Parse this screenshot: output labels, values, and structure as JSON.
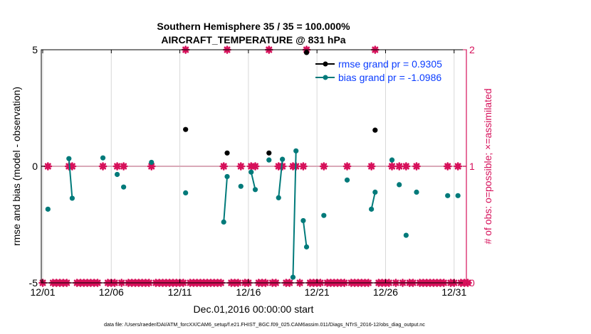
{
  "chart_data": {
    "type": "scatter",
    "title": [
      "Southern Hemisphere 35 / 35 = 100.000%",
      "AIRCRAFT_TEMPERATURE @ 831 hPa"
    ],
    "xlabel": "Dec.01,2016 00:00:00 start",
    "ylabel": "rmse and bias (model - observation)",
    "y2label": "# of obs: o=possible; ×=assimilated",
    "x_units": "days since 2016-12-01 00:00",
    "xlim": [
      0,
      31
    ],
    "ylim": [
      -5,
      5
    ],
    "y2lim": [
      0,
      2
    ],
    "xticks": [
      {
        "x": 0,
        "label": "12/01"
      },
      {
        "x": 5,
        "label": "12/06"
      },
      {
        "x": 10,
        "label": "12/11"
      },
      {
        "x": 15,
        "label": "12/16"
      },
      {
        "x": 20,
        "label": "12/21"
      },
      {
        "x": 25,
        "label": "12/26"
      },
      {
        "x": 30,
        "label": "12/31"
      }
    ],
    "yticks": [
      {
        "y": -5,
        "label": "-5"
      },
      {
        "y": 0,
        "label": "0"
      },
      {
        "y": 5,
        "label": "5"
      }
    ],
    "y2ticks": [
      {
        "y": 0,
        "label": "0"
      },
      {
        "y": 1,
        "label": "1"
      },
      {
        "y": 2,
        "label": "2"
      }
    ],
    "grid": "vertical",
    "legend": {
      "placement": "top-right",
      "entries": [
        "rmse grand pr = 0.9305",
        "bias grand pr = -1.0986"
      ]
    },
    "series": [
      {
        "name": "rmse",
        "color": "#000000",
        "runs": [
          [
            [
              10.42,
              1.58
            ]
          ],
          [
            [
              13.45,
              0.57
            ]
          ],
          [
            [
              16.5,
              0.57
            ]
          ],
          [
            [
              19.24,
              4.88
            ]
          ],
          [
            [
              24.24,
              1.55
            ]
          ]
        ]
      },
      {
        "name": "bias",
        "color": "#007a7a",
        "runs": [
          [
            [
              0.38,
              -1.84
            ]
          ],
          [
            [
              1.91,
              0.33
            ],
            [
              2.15,
              -1.37
            ]
          ],
          [
            [
              4.39,
              0.36
            ]
          ],
          [
            [
              5.43,
              -0.35
            ]
          ],
          [
            [
              5.9,
              -0.89
            ]
          ],
          [
            [
              7.93,
              0.17
            ]
          ],
          [
            [
              10.42,
              -1.14
            ]
          ],
          [
            [
              13.2,
              -2.39
            ],
            [
              13.45,
              -0.44
            ]
          ],
          [
            [
              14.45,
              -0.86
            ]
          ],
          [
            [
              15.2,
              -0.25
            ],
            [
              15.5,
              -1.0
            ]
          ],
          [
            [
              16.5,
              0.27
            ]
          ],
          [
            [
              17.2,
              -1.35
            ],
            [
              17.48,
              0.3
            ]
          ],
          [
            [
              18.25,
              -4.76
            ],
            [
              18.47,
              0.66
            ]
          ],
          [
            [
              19.0,
              -2.33
            ],
            [
              19.24,
              -3.46
            ]
          ],
          [
            [
              20.5,
              -2.11
            ]
          ],
          [
            [
              22.2,
              -0.59
            ]
          ],
          [
            [
              23.97,
              -1.84
            ],
            [
              24.24,
              -1.11
            ]
          ],
          [
            [
              25.47,
              0.27
            ]
          ],
          [
            [
              26.0,
              -0.79
            ]
          ],
          [
            [
              26.5,
              -2.96
            ]
          ],
          [
            [
              27.26,
              -1.11
            ]
          ],
          [
            [
              29.53,
              -1.26
            ]
          ],
          [
            [
              30.28,
              -1.26
            ]
          ]
        ]
      },
      {
        "name": "obs count",
        "color": "#d6105a",
        "axis": "right",
        "default_count": 0,
        "step_days": 0.25,
        "nonzero": [
          [
            0.38,
            1
          ],
          [
            1.91,
            1
          ],
          [
            2.15,
            1
          ],
          [
            4.39,
            1
          ],
          [
            5.43,
            1
          ],
          [
            5.9,
            1
          ],
          [
            7.93,
            1
          ],
          [
            10.42,
            2
          ],
          [
            13.2,
            1
          ],
          [
            13.45,
            2
          ],
          [
            14.45,
            1
          ],
          [
            15.2,
            1
          ],
          [
            15.5,
            1
          ],
          [
            16.5,
            2
          ],
          [
            17.2,
            1
          ],
          [
            17.48,
            1
          ],
          [
            18.25,
            1
          ],
          [
            18.47,
            1
          ],
          [
            19.0,
            1
          ],
          [
            19.24,
            2
          ],
          [
            20.5,
            1
          ],
          [
            22.2,
            1
          ],
          [
            23.97,
            1
          ],
          [
            24.24,
            2
          ],
          [
            25.47,
            1
          ],
          [
            26.0,
            1
          ],
          [
            26.5,
            1
          ],
          [
            27.26,
            1
          ],
          [
            29.53,
            1
          ],
          [
            30.28,
            1
          ]
        ]
      }
    ],
    "footnote": "data file: /Users/raeder/DAI/ATM_forcXX/CAM6_setup/f.e21.FHIST_BGC.f09_025.CAM6assim.011/Diags_NTrS_2016-12/obs_diag_output.nc"
  }
}
